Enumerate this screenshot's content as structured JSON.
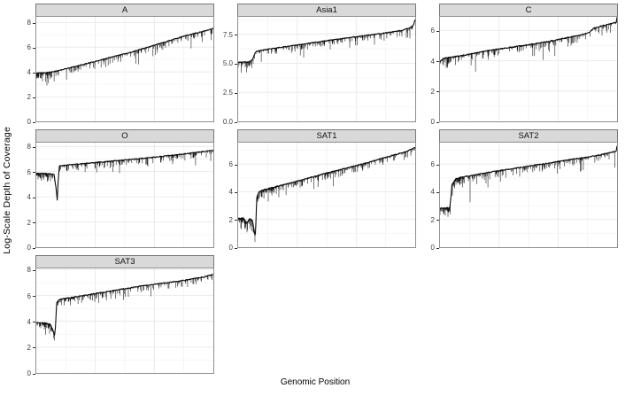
{
  "chart_data": {
    "type": "line",
    "title": "",
    "xlabel": "Genomic Position",
    "ylabel": "Log-Scale Depth of Coverage",
    "legend": "none",
    "grid": "major-and-minor, light grey on white, faceted 3-column layout",
    "line_color": "#000000",
    "strip_background": "#d9d9d9",
    "panels": [
      {
        "name": "A",
        "ylim": [
          0,
          8.45
        ],
        "yticks": {
          "values": [
            0,
            2,
            4,
            6,
            8
          ],
          "labels": [
            "0",
            "2",
            "4",
            "6",
            "8"
          ]
        },
        "trend": [
          [
            0,
            3.9
          ],
          [
            0.05,
            3.92
          ],
          [
            0.1,
            4.02
          ],
          [
            0.15,
            4.2
          ],
          [
            0.25,
            4.55
          ],
          [
            0.4,
            5.1
          ],
          [
            0.55,
            5.65
          ],
          [
            0.7,
            6.3
          ],
          [
            0.85,
            6.95
          ],
          [
            0.95,
            7.3
          ],
          [
            1,
            7.5
          ]
        ],
        "rough": [
          [
            0,
            0.09,
            0.55
          ]
        ],
        "extra_spikes": [
          [
            0.06,
            2.9
          ],
          [
            0.33,
            4.25
          ],
          [
            0.56,
            5.1
          ]
        ],
        "noise": {
          "seed": 11,
          "spike_prob": 0.5,
          "spike_scale": 0.5,
          "deep_prob": 0.04,
          "deep_scale": 0.7
        }
      },
      {
        "name": "Asia1",
        "ylim": [
          0,
          9.0
        ],
        "yticks": {
          "values": [
            0,
            2.5,
            5,
            7.5
          ],
          "labels": [
            "0.0",
            "2.5",
            "5.0",
            "7.5"
          ]
        },
        "trend": [
          [
            0,
            5.1
          ],
          [
            0.06,
            5.12
          ],
          [
            0.08,
            5.3
          ],
          [
            0.1,
            6.0
          ],
          [
            0.14,
            6.15
          ],
          [
            0.3,
            6.5
          ],
          [
            0.5,
            6.95
          ],
          [
            0.7,
            7.35
          ],
          [
            0.85,
            7.65
          ],
          [
            0.93,
            7.85
          ],
          [
            0.97,
            8.05
          ],
          [
            0.99,
            8.3
          ],
          [
            1,
            8.8
          ]
        ],
        "rough": [
          [
            0,
            0.08,
            0.5
          ]
        ],
        "extra_spikes": [
          [
            0.37,
            5.5
          ],
          [
            0.52,
            6.2
          ],
          [
            0.63,
            6.35
          ],
          [
            0.77,
            6.6
          ]
        ],
        "noise": {
          "seed": 22,
          "spike_prob": 0.5,
          "spike_scale": 0.5,
          "deep_prob": 0.04,
          "deep_scale": 0.7
        }
      },
      {
        "name": "C",
        "ylim": [
          0,
          6.9
        ],
        "yticks": {
          "values": [
            0,
            2,
            4,
            6
          ],
          "labels": [
            "0",
            "2",
            "4",
            "6"
          ]
        },
        "trend": [
          [
            0,
            3.95
          ],
          [
            0.02,
            4.15
          ],
          [
            0.1,
            4.3
          ],
          [
            0.3,
            4.72
          ],
          [
            0.5,
            5.05
          ],
          [
            0.65,
            5.35
          ],
          [
            0.8,
            5.72
          ],
          [
            0.84,
            5.85
          ],
          [
            0.87,
            6.15
          ],
          [
            0.92,
            6.32
          ],
          [
            0.97,
            6.45
          ],
          [
            0.995,
            6.55
          ],
          [
            1,
            6.9
          ]
        ],
        "rough": [
          [
            0,
            0.05,
            0.4
          ]
        ],
        "extra_spikes": [
          [
            0.04,
            3.6
          ],
          [
            0.56,
            4.65
          ],
          [
            0.74,
            5.0
          ]
        ],
        "noise": {
          "seed": 33,
          "spike_prob": 0.5,
          "spike_scale": 0.45,
          "deep_prob": 0.04,
          "deep_scale": 0.6
        }
      },
      {
        "name": "O",
        "ylim": [
          0,
          8.3
        ],
        "yticks": {
          "values": [
            0,
            2,
            4,
            6,
            8
          ],
          "labels": [
            "0",
            "2",
            "4",
            "6",
            "8"
          ]
        },
        "trend": [
          [
            0,
            5.85
          ],
          [
            0.05,
            5.85
          ],
          [
            0.1,
            5.78
          ],
          [
            0.112,
            4.6
          ],
          [
            0.118,
            3.75
          ],
          [
            0.124,
            5.4
          ],
          [
            0.13,
            6.45
          ],
          [
            0.2,
            6.55
          ],
          [
            0.4,
            6.8
          ],
          [
            0.6,
            7.05
          ],
          [
            0.8,
            7.35
          ],
          [
            0.95,
            7.6
          ],
          [
            1,
            7.7
          ]
        ],
        "rough": [
          [
            0,
            0.105,
            0.45
          ]
        ],
        "extra_spikes": [
          [
            0.47,
            5.9
          ],
          [
            0.63,
            6.4
          ],
          [
            0.77,
            6.6
          ]
        ],
        "noise": {
          "seed": 44,
          "spike_prob": 0.5,
          "spike_scale": 0.5,
          "deep_prob": 0.04,
          "deep_scale": 0.7
        }
      },
      {
        "name": "SAT1",
        "ylim": [
          0,
          7.55
        ],
        "yticks": {
          "values": [
            0,
            2,
            4,
            6
          ],
          "labels": [
            "0",
            "2",
            "4",
            "6"
          ]
        },
        "trend": [
          [
            0,
            2.1
          ],
          [
            0.03,
            2.1
          ],
          [
            0.05,
            1.75
          ],
          [
            0.065,
            2.05
          ],
          [
            0.08,
            1.95
          ],
          [
            0.09,
            1.3
          ],
          [
            0.097,
            0.7
          ],
          [
            0.105,
            3.6
          ],
          [
            0.115,
            3.95
          ],
          [
            0.13,
            4.1
          ],
          [
            0.3,
            4.65
          ],
          [
            0.5,
            5.35
          ],
          [
            0.7,
            6.0
          ],
          [
            0.85,
            6.55
          ],
          [
            0.95,
            6.9
          ],
          [
            1,
            7.2
          ]
        ],
        "rough": [
          [
            0,
            0.095,
            0.35
          ],
          [
            0.105,
            0.22,
            0.35
          ]
        ],
        "extra_spikes": [
          [
            0.17,
            3.3
          ],
          [
            0.23,
            3.6
          ],
          [
            0.35,
            4.3
          ]
        ],
        "noise": {
          "seed": 55,
          "spike_prob": 0.5,
          "spike_scale": 0.5,
          "deep_prob": 0.045,
          "deep_scale": 0.7
        }
      },
      {
        "name": "SAT2",
        "ylim": [
          0,
          7.55
        ],
        "yticks": {
          "values": [
            0,
            2,
            4,
            6
          ],
          "labels": [
            "0",
            "2",
            "4",
            "6"
          ]
        },
        "trend": [
          [
            0,
            2.8
          ],
          [
            0.055,
            2.85
          ],
          [
            0.062,
            3.6
          ],
          [
            0.068,
            4.55
          ],
          [
            0.09,
            4.95
          ],
          [
            0.12,
            5.05
          ],
          [
            0.3,
            5.45
          ],
          [
            0.5,
            5.85
          ],
          [
            0.7,
            6.25
          ],
          [
            0.88,
            6.6
          ],
          [
            0.97,
            6.85
          ],
          [
            0.995,
            6.95
          ],
          [
            1,
            7.3
          ]
        ],
        "rough": [
          [
            0,
            0.06,
            0.5
          ],
          [
            0.065,
            0.13,
            0.4
          ]
        ],
        "extra_spikes": [
          [
            0.17,
            3.25
          ],
          [
            0.26,
            4.6
          ],
          [
            0.45,
            5.1
          ]
        ],
        "noise": {
          "seed": 66,
          "spike_prob": 0.5,
          "spike_scale": 0.5,
          "deep_prob": 0.045,
          "deep_scale": 0.7
        }
      },
      {
        "name": "SAT3",
        "ylim": [
          0,
          8.1
        ],
        "yticks": {
          "values": [
            0,
            2,
            4,
            6,
            8
          ],
          "labels": [
            "0",
            "2",
            "4",
            "6",
            "8"
          ]
        },
        "trend": [
          [
            0,
            3.9
          ],
          [
            0.05,
            3.88
          ],
          [
            0.08,
            3.75
          ],
          [
            0.095,
            3.3
          ],
          [
            0.103,
            2.95
          ],
          [
            0.108,
            3.6
          ],
          [
            0.115,
            5.45
          ],
          [
            0.13,
            5.7
          ],
          [
            0.2,
            5.85
          ],
          [
            0.4,
            6.3
          ],
          [
            0.6,
            6.75
          ],
          [
            0.8,
            7.1
          ],
          [
            0.95,
            7.45
          ],
          [
            1,
            7.65
          ]
        ],
        "rough": [
          [
            0.02,
            0.1,
            0.4
          ],
          [
            0.12,
            0.22,
            0.3
          ]
        ],
        "extra_spikes": [
          [
            0.33,
            5.5
          ],
          [
            0.52,
            5.9
          ]
        ],
        "noise": {
          "seed": 77,
          "spike_prob": 0.5,
          "spike_scale": 0.5,
          "deep_prob": 0.04,
          "deep_scale": 0.7
        }
      }
    ]
  }
}
